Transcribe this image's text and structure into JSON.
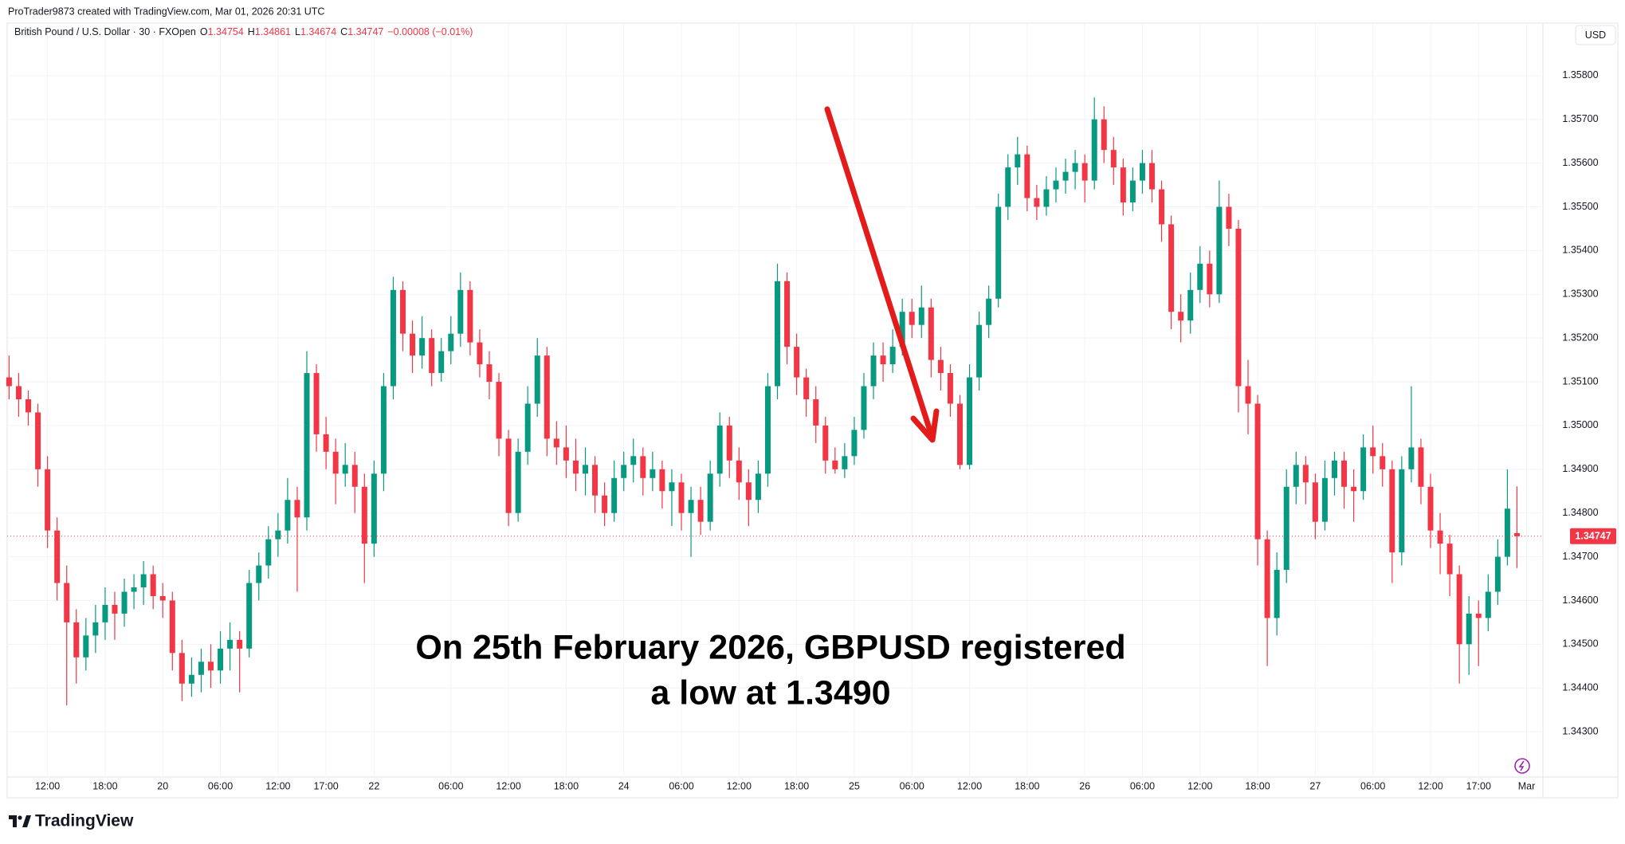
{
  "chart_data": {
    "type": "candlestick",
    "credit": "ProTrader9873 created with TradingView.com, Mar 01, 2026 20:31 UTC",
    "symbol": "British Pound / U.S. Dollar · 30 · FXOpen",
    "ohlc_letters": [
      "O",
      "H",
      "L",
      "C"
    ],
    "change": "−0.00008 (−0.01%)",
    "currency": "USD",
    "annotation": [
      "On 25th February 2026, GBPUSD registered",
      "a low at 1.3490"
    ],
    "brand": "TradingView",
    "up_color": "#089981",
    "down_color": "#f23645",
    "grid": true,
    "ylim": [
      1.342,
      1.3592
    ],
    "yticks": [
      {
        "value": 1.343,
        "label": "1.34300"
      },
      {
        "value": 1.344,
        "label": "1.34400"
      },
      {
        "value": 1.345,
        "label": "1.34500"
      },
      {
        "value": 1.346,
        "label": "1.34600"
      },
      {
        "value": 1.347,
        "label": "1.34700"
      },
      {
        "value": 1.348,
        "label": "1.34800"
      },
      {
        "value": 1.349,
        "label": "1.34900"
      },
      {
        "value": 1.35,
        "label": "1.35000"
      },
      {
        "value": 1.351,
        "label": "1.35100"
      },
      {
        "value": 1.352,
        "label": "1.35200"
      },
      {
        "value": 1.353,
        "label": "1.35300"
      },
      {
        "value": 1.354,
        "label": "1.35400"
      },
      {
        "value": 1.355,
        "label": "1.35500"
      },
      {
        "value": 1.356,
        "label": "1.35600"
      },
      {
        "value": 1.357,
        "label": "1.35700"
      },
      {
        "value": 1.358,
        "label": "1.35800"
      }
    ],
    "xlim": [
      -0.2,
      159.7
    ],
    "xticks": [
      {
        "value": 4,
        "label": "12:00"
      },
      {
        "value": 10,
        "label": "18:00"
      },
      {
        "value": 16,
        "label": "20"
      },
      {
        "value": 22,
        "label": "06:00"
      },
      {
        "value": 28,
        "label": "12:00"
      },
      {
        "value": 33,
        "label": "17:00"
      },
      {
        "value": 38,
        "label": "22"
      },
      {
        "value": 46,
        "label": "06:00"
      },
      {
        "value": 52,
        "label": "12:00"
      },
      {
        "value": 58,
        "label": "18:00"
      },
      {
        "value": 64,
        "label": "24"
      },
      {
        "value": 70,
        "label": "06:00"
      },
      {
        "value": 76,
        "label": "12:00"
      },
      {
        "value": 82,
        "label": "18:00"
      },
      {
        "value": 88,
        "label": "25"
      },
      {
        "value": 94,
        "label": "06:00"
      },
      {
        "value": 100,
        "label": "12:00"
      },
      {
        "value": 106,
        "label": "18:00"
      },
      {
        "value": 112,
        "label": "26"
      },
      {
        "value": 118,
        "label": "06:00"
      },
      {
        "value": 124,
        "label": "12:00"
      },
      {
        "value": 130,
        "label": "18:00"
      },
      {
        "value": 136,
        "label": "27"
      },
      {
        "value": 142,
        "label": "06:00"
      },
      {
        "value": 148,
        "label": "12:00"
      },
      {
        "value": 153,
        "label": "17:00"
      },
      {
        "value": 158,
        "label": "Mar"
      }
    ],
    "ohlc": [
      [
        1.3511,
        1.3516,
        1.3506,
        1.3509
      ],
      [
        1.3509,
        1.3512,
        1.3502,
        1.3506
      ],
      [
        1.3506,
        1.3508,
        1.35,
        1.3503
      ],
      [
        1.3503,
        1.3505,
        1.3486,
        1.349
      ],
      [
        1.349,
        1.3493,
        1.3472,
        1.3476
      ],
      [
        1.3476,
        1.3479,
        1.346,
        1.3464
      ],
      [
        1.3464,
        1.3468,
        1.3436,
        1.3455
      ],
      [
        1.3455,
        1.3458,
        1.3441,
        1.3447
      ],
      [
        1.3447,
        1.3456,
        1.3444,
        1.3452
      ],
      [
        1.3452,
        1.3459,
        1.3448,
        1.3455
      ],
      [
        1.3455,
        1.3463,
        1.3451,
        1.3459
      ],
      [
        1.3459,
        1.3462,
        1.3451,
        1.3457
      ],
      [
        1.3457,
        1.3465,
        1.3454,
        1.3462
      ],
      [
        1.3462,
        1.3466,
        1.3458,
        1.3463
      ],
      [
        1.3463,
        1.3469,
        1.3459,
        1.3466
      ],
      [
        1.3466,
        1.3468,
        1.3458,
        1.3461
      ],
      [
        1.3461,
        1.3464,
        1.3456,
        1.346
      ],
      [
        1.346,
        1.3462,
        1.3444,
        1.3448
      ],
      [
        1.3448,
        1.3451,
        1.3437,
        1.3441
      ],
      [
        1.3441,
        1.3447,
        1.3438,
        1.3443
      ],
      [
        1.3443,
        1.3449,
        1.3439,
        1.3446
      ],
      [
        1.3446,
        1.345,
        1.344,
        1.3444
      ],
      [
        1.3444,
        1.3453,
        1.3441,
        1.3449
      ],
      [
        1.3449,
        1.3455,
        1.3444,
        1.3451
      ],
      [
        1.3451,
        1.3453,
        1.3439,
        1.3449
      ],
      [
        1.3449,
        1.3467,
        1.3447,
        1.3464
      ],
      [
        1.3464,
        1.3471,
        1.346,
        1.3468
      ],
      [
        1.3468,
        1.3477,
        1.3465,
        1.3474
      ],
      [
        1.3474,
        1.348,
        1.347,
        1.3476
      ],
      [
        1.3476,
        1.3488,
        1.3473,
        1.3483
      ],
      [
        1.3483,
        1.3486,
        1.3462,
        1.3479
      ],
      [
        1.3479,
        1.3517,
        1.3476,
        1.3512
      ],
      [
        1.3512,
        1.3514,
        1.3494,
        1.3498
      ],
      [
        1.3498,
        1.3502,
        1.349,
        1.3494
      ],
      [
        1.3494,
        1.3497,
        1.3482,
        1.3489
      ],
      [
        1.3489,
        1.3496,
        1.3486,
        1.3491
      ],
      [
        1.3491,
        1.3494,
        1.348,
        1.3486
      ],
      [
        1.3486,
        1.3489,
        1.3464,
        1.3473
      ],
      [
        1.3473,
        1.3492,
        1.347,
        1.3489
      ],
      [
        1.3489,
        1.3512,
        1.3485,
        1.3509
      ],
      [
        1.3509,
        1.3534,
        1.3506,
        1.3531
      ],
      [
        1.3531,
        1.3533,
        1.3517,
        1.3521
      ],
      [
        1.3521,
        1.3524,
        1.3512,
        1.3516
      ],
      [
        1.3516,
        1.3525,
        1.3513,
        1.352
      ],
      [
        1.352,
        1.3522,
        1.3509,
        1.3512
      ],
      [
        1.3512,
        1.352,
        1.351,
        1.3517
      ],
      [
        1.3517,
        1.3525,
        1.3514,
        1.3521
      ],
      [
        1.3521,
        1.3535,
        1.3518,
        1.3531
      ],
      [
        1.3531,
        1.3533,
        1.3516,
        1.3519
      ],
      [
        1.3519,
        1.3522,
        1.3511,
        1.3514
      ],
      [
        1.3514,
        1.3517,
        1.3506,
        1.351
      ],
      [
        1.351,
        1.3512,
        1.3493,
        1.3497
      ],
      [
        1.3497,
        1.3499,
        1.3477,
        1.348
      ],
      [
        1.348,
        1.3497,
        1.3478,
        1.3494
      ],
      [
        1.3494,
        1.3509,
        1.3491,
        1.3505
      ],
      [
        1.3505,
        1.352,
        1.3502,
        1.3516
      ],
      [
        1.3516,
        1.3518,
        1.3493,
        1.3497
      ],
      [
        1.3497,
        1.3501,
        1.3491,
        1.3495
      ],
      [
        1.3495,
        1.35,
        1.3488,
        1.3492
      ],
      [
        1.3492,
        1.3497,
        1.3485,
        1.3489
      ],
      [
        1.3489,
        1.3495,
        1.3484,
        1.3491
      ],
      [
        1.3491,
        1.3493,
        1.348,
        1.3484
      ],
      [
        1.3484,
        1.3487,
        1.3477,
        1.348
      ],
      [
        1.348,
        1.3492,
        1.3478,
        1.3488
      ],
      [
        1.3488,
        1.3494,
        1.3485,
        1.3491
      ],
      [
        1.3491,
        1.3497,
        1.3487,
        1.3493
      ],
      [
        1.3493,
        1.3495,
        1.3484,
        1.3488
      ],
      [
        1.3488,
        1.3494,
        1.3485,
        1.349
      ],
      [
        1.349,
        1.3492,
        1.3481,
        1.3485
      ],
      [
        1.3485,
        1.349,
        1.3477,
        1.3487
      ],
      [
        1.3487,
        1.3489,
        1.3476,
        1.348
      ],
      [
        1.348,
        1.3486,
        1.347,
        1.3483
      ],
      [
        1.3483,
        1.3486,
        1.3475,
        1.3478
      ],
      [
        1.3478,
        1.3492,
        1.3476,
        1.3489
      ],
      [
        1.3489,
        1.3503,
        1.3486,
        1.35
      ],
      [
        1.35,
        1.3502,
        1.3488,
        1.3492
      ],
      [
        1.3492,
        1.3495,
        1.3483,
        1.3487
      ],
      [
        1.3487,
        1.349,
        1.3477,
        1.3483
      ],
      [
        1.3483,
        1.3492,
        1.348,
        1.3489
      ],
      [
        1.3489,
        1.3512,
        1.3486,
        1.3509
      ],
      [
        1.3509,
        1.3537,
        1.3506,
        1.3533
      ],
      [
        1.3533,
        1.3535,
        1.3514,
        1.3518
      ],
      [
        1.3518,
        1.3521,
        1.3507,
        1.3511
      ],
      [
        1.3511,
        1.3513,
        1.3502,
        1.3506
      ],
      [
        1.3506,
        1.3509,
        1.3496,
        1.35
      ],
      [
        1.35,
        1.3502,
        1.3489,
        1.3492
      ],
      [
        1.3492,
        1.3495,
        1.3489,
        1.349
      ],
      [
        1.349,
        1.3496,
        1.3488,
        1.3493
      ],
      [
        1.3493,
        1.3502,
        1.3491,
        1.3499
      ],
      [
        1.3499,
        1.3512,
        1.3497,
        1.3509
      ],
      [
        1.3509,
        1.3519,
        1.3506,
        1.3516
      ],
      [
        1.3516,
        1.3519,
        1.351,
        1.3514
      ],
      [
        1.3514,
        1.3522,
        1.3512,
        1.3518
      ],
      [
        1.3518,
        1.3529,
        1.3516,
        1.3526
      ],
      [
        1.3526,
        1.3529,
        1.352,
        1.3523
      ],
      [
        1.3523,
        1.3532,
        1.352,
        1.3527
      ],
      [
        1.3527,
        1.3529,
        1.3511,
        1.3515
      ],
      [
        1.3515,
        1.3518,
        1.3508,
        1.3512
      ],
      [
        1.3512,
        1.3514,
        1.3502,
        1.3505
      ],
      [
        1.3505,
        1.3507,
        1.349,
        1.3491
      ],
      [
        1.3491,
        1.3514,
        1.349,
        1.3511
      ],
      [
        1.3511,
        1.3526,
        1.3508,
        1.3523
      ],
      [
        1.3523,
        1.3532,
        1.352,
        1.3529
      ],
      [
        1.3529,
        1.3553,
        1.3527,
        1.355
      ],
      [
        1.355,
        1.3562,
        1.3547,
        1.3559
      ],
      [
        1.3559,
        1.3566,
        1.3555,
        1.3562
      ],
      [
        1.3562,
        1.3564,
        1.3549,
        1.3552
      ],
      [
        1.3552,
        1.3555,
        1.3547,
        1.355
      ],
      [
        1.355,
        1.3557,
        1.3548,
        1.3554
      ],
      [
        1.3554,
        1.3559,
        1.3551,
        1.3556
      ],
      [
        1.3556,
        1.3561,
        1.3553,
        1.3558
      ],
      [
        1.3558,
        1.3563,
        1.3554,
        1.356
      ],
      [
        1.356,
        1.3562,
        1.3551,
        1.3556
      ],
      [
        1.3556,
        1.3575,
        1.3554,
        1.357
      ],
      [
        1.357,
        1.3573,
        1.356,
        1.3563
      ],
      [
        1.3563,
        1.3566,
        1.3555,
        1.3559
      ],
      [
        1.3559,
        1.3561,
        1.3548,
        1.3551
      ],
      [
        1.3551,
        1.3559,
        1.3549,
        1.3556
      ],
      [
        1.3556,
        1.3563,
        1.3553,
        1.356
      ],
      [
        1.356,
        1.3563,
        1.3551,
        1.3554
      ],
      [
        1.3554,
        1.3556,
        1.3542,
        1.3546
      ],
      [
        1.3546,
        1.3548,
        1.3522,
        1.3526
      ],
      [
        1.3526,
        1.353,
        1.3519,
        1.3524
      ],
      [
        1.3524,
        1.3535,
        1.3521,
        1.3531
      ],
      [
        1.3531,
        1.3541,
        1.3528,
        1.3537
      ],
      [
        1.3537,
        1.354,
        1.3527,
        1.353
      ],
      [
        1.353,
        1.3556,
        1.3528,
        1.355
      ],
      [
        1.355,
        1.3553,
        1.3541,
        1.3545
      ],
      [
        1.3545,
        1.3547,
        1.3503,
        1.3509
      ],
      [
        1.3509,
        1.3515,
        1.3498,
        1.3505
      ],
      [
        1.3505,
        1.3507,
        1.3468,
        1.3474
      ],
      [
        1.3474,
        1.3476,
        1.3445,
        1.3456
      ],
      [
        1.3456,
        1.3471,
        1.3452,
        1.3467
      ],
      [
        1.3467,
        1.349,
        1.3464,
        1.3486
      ],
      [
        1.3486,
        1.3494,
        1.3482,
        1.3491
      ],
      [
        1.3491,
        1.3493,
        1.3482,
        1.3487
      ],
      [
        1.3487,
        1.3489,
        1.3474,
        1.3478
      ],
      [
        1.3478,
        1.3492,
        1.3476,
        1.3488
      ],
      [
        1.3488,
        1.3494,
        1.3484,
        1.3492
      ],
      [
        1.3492,
        1.3494,
        1.3481,
        1.3486
      ],
      [
        1.3486,
        1.349,
        1.3478,
        1.3485
      ],
      [
        1.3485,
        1.3498,
        1.3483,
        1.3495
      ],
      [
        1.3495,
        1.35,
        1.3489,
        1.3493
      ],
      [
        1.3493,
        1.3496,
        1.3486,
        1.349
      ],
      [
        1.349,
        1.3492,
        1.3464,
        1.3471
      ],
      [
        1.3471,
        1.3493,
        1.3468,
        1.349
      ],
      [
        1.349,
        1.3509,
        1.3487,
        1.3495
      ],
      [
        1.3495,
        1.3497,
        1.3482,
        1.3486
      ],
      [
        1.3486,
        1.3489,
        1.3472,
        1.3476
      ],
      [
        1.3476,
        1.348,
        1.3466,
        1.3473
      ],
      [
        1.3473,
        1.3475,
        1.3461,
        1.3466
      ],
      [
        1.3466,
        1.3468,
        1.3441,
        1.345
      ],
      [
        1.345,
        1.3461,
        1.3443,
        1.3457
      ],
      [
        1.3457,
        1.346,
        1.3445,
        1.3456
      ],
      [
        1.3456,
        1.3466,
        1.3453,
        1.3462
      ],
      [
        1.3462,
        1.3474,
        1.3459,
        1.347
      ],
      [
        1.347,
        1.349,
        1.3468,
        1.3481
      ],
      [
        1.34754,
        1.34861,
        1.34674,
        1.34747
      ]
    ]
  }
}
